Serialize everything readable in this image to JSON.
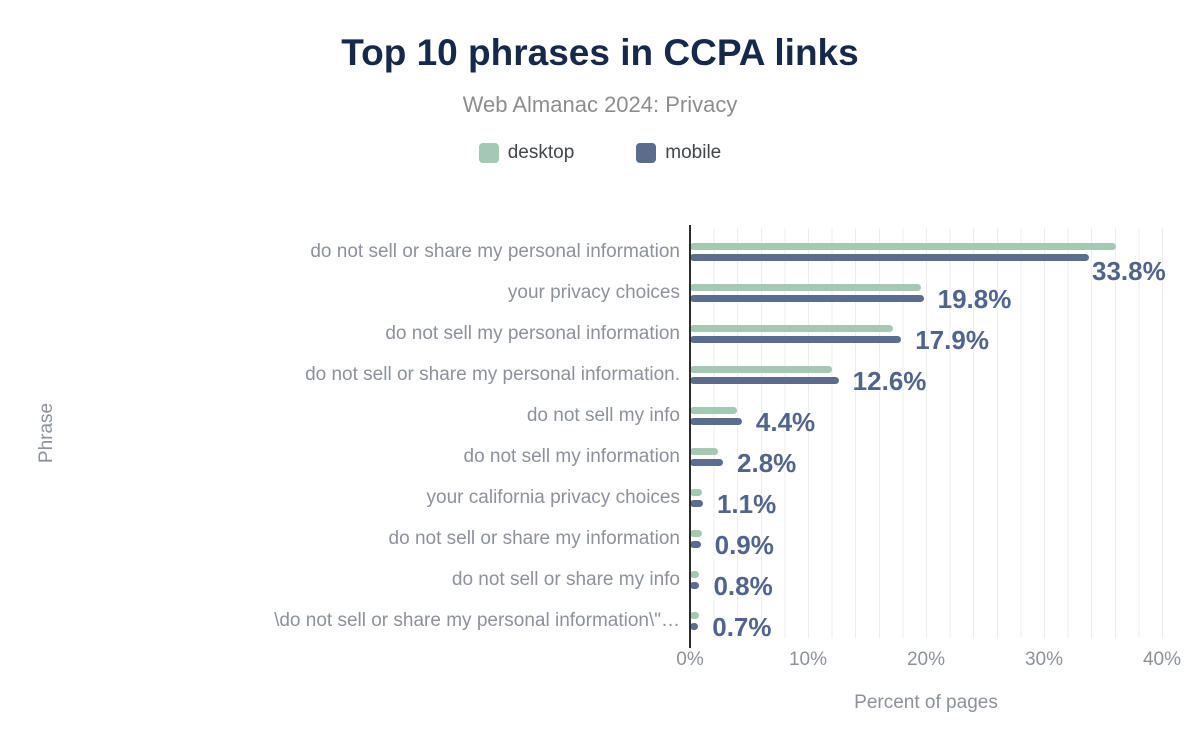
{
  "title": "Top 10 phrases in CCPA links",
  "subtitle": "Web Almanac 2024: Privacy",
  "legend": [
    {
      "label": "desktop",
      "color": "#a5c8b3"
    },
    {
      "label": "mobile",
      "color": "#5a6d8f"
    }
  ],
  "chart_data": {
    "type": "bar",
    "orientation": "horizontal",
    "title": "Top 10 phrases in CCPA links",
    "subtitle": "Web Almanac 2024: Privacy",
    "xlabel": "Percent of pages",
    "ylabel": "Phrase",
    "xlim": [
      0,
      41.5
    ],
    "x_ticks": [
      "0%",
      "10%",
      "20%",
      "30%",
      "40%"
    ],
    "x_tick_values": [
      0,
      10,
      20,
      30,
      40
    ],
    "grid": "vertical, every 2%",
    "legend_position": "top",
    "categories": [
      "do not sell or share my personal information",
      "your privacy choices",
      "do not sell my personal information",
      "do not sell or share my personal information.",
      "do not sell my info",
      "do not sell my information",
      "your california privacy choices",
      "do not sell or share my information",
      "do not sell or share my info",
      "\\do not sell or share my personal information\\\"…"
    ],
    "series": [
      {
        "name": "desktop",
        "color": "#a5c8b3",
        "values": [
          36.1,
          19.6,
          17.2,
          12.0,
          4.0,
          2.4,
          1.0,
          1.0,
          0.8,
          0.8
        ]
      },
      {
        "name": "mobile",
        "color": "#5a6d8f",
        "values": [
          33.8,
          19.8,
          17.9,
          12.6,
          4.4,
          2.8,
          1.1,
          0.9,
          0.8,
          0.7
        ]
      }
    ],
    "data_labels": {
      "labeled_series": "mobile",
      "values": [
        "33.8%",
        "19.8%",
        "17.9%",
        "12.6%",
        "4.4%",
        "2.8%",
        "1.1%",
        "0.9%",
        "0.8%",
        "0.7%"
      ],
      "color": "#51658c"
    }
  },
  "colors": {
    "background": "#ffffff",
    "title": "#16294a",
    "subtitle": "#8d8d8d",
    "legend_text": "#42464e",
    "category_labels": "#8c919b",
    "tick_labels": "#8c919b",
    "axis_titles": "#8c919b",
    "axis_line": "#2b2b2b",
    "gridline": "#ededed",
    "desktop_bar": "#a5c8b3",
    "mobile_bar": "#5a6d8f",
    "value_labels": "#51658c"
  }
}
